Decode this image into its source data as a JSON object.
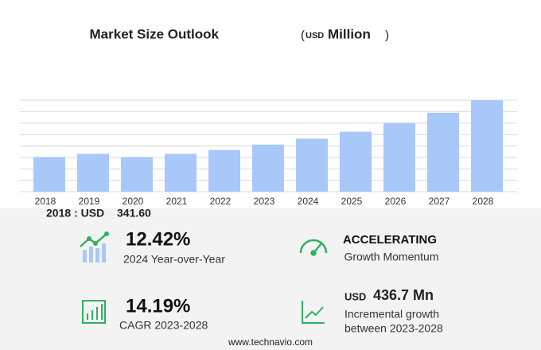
{
  "chart_data": {
    "type": "bar",
    "title": "Market Size Outlook",
    "unit_prefix": "USD",
    "unit": "Million",
    "categories": [
      "2018",
      "2019",
      "2020",
      "2021",
      "2022",
      "2023",
      "2024",
      "2025",
      "2026",
      "2027",
      "2028"
    ],
    "values": [
      341.6,
      372,
      341,
      372,
      411,
      463.9,
      521.5,
      590,
      675,
      776,
      900.6
    ],
    "color": "#a8c8fa",
    "ylim": [
      0,
      900
    ],
    "yticks": [
      0,
      112.5,
      225,
      337.5,
      450,
      562.5,
      675,
      787.5,
      900
    ],
    "ytick_labels_shown": false,
    "grid": true
  },
  "highlight": {
    "label": "2018 : USD",
    "value": "341.60"
  },
  "stats": [
    {
      "value": "12.42%",
      "caption": "2024 Year-over-Year"
    },
    {
      "value": "ACCELERATING",
      "caption": "Growth Momentum"
    },
    {
      "value": "14.19%",
      "caption": "CAGR 2023-2028"
    },
    {
      "prefix": "USD",
      "value": "436.7 Mn",
      "caption": "Incremental growth",
      "caption2": "between 2023-2028"
    }
  ],
  "footer": "www.technavio.com"
}
